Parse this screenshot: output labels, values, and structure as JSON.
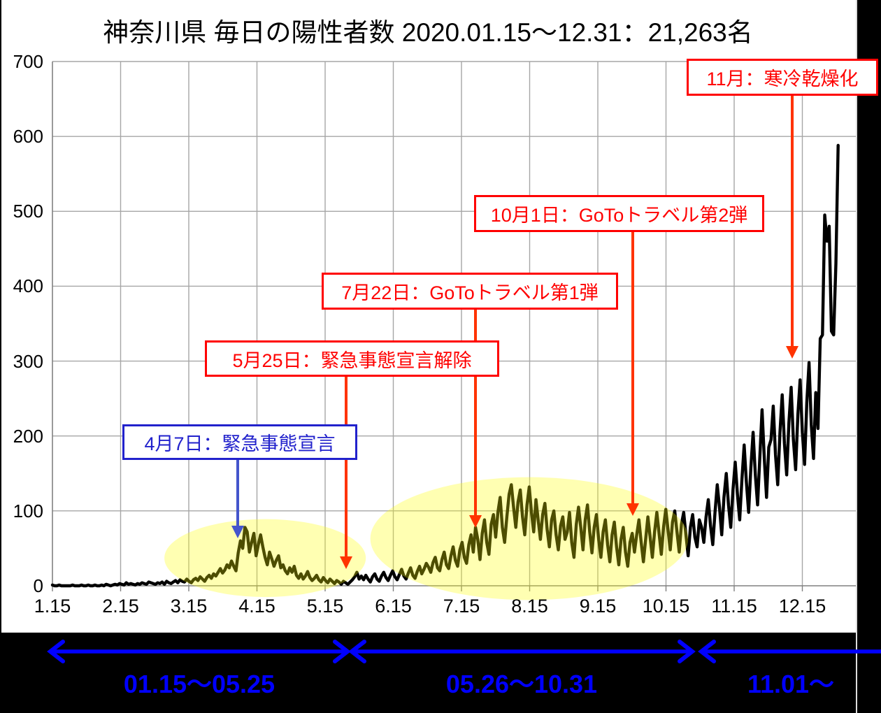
{
  "title": "神奈川県 毎日の陽性者数 2020.01.15〜12.31：21,263名",
  "chart_data": {
    "type": "line",
    "title": "神奈川県 毎日の陽性者数 2020.01.15〜12.31：21,263名",
    "total_cases_label": "21,263名",
    "x_range": "2020.01.15〜12.31",
    "x_ticks": [
      "1.15",
      "2.15",
      "3.15",
      "4.15",
      "5.15",
      "6.15",
      "7.15",
      "8.15",
      "9.15",
      "10.15",
      "11.15",
      "12.15"
    ],
    "y_ticks": [
      "0",
      "100",
      "200",
      "300",
      "400",
      "500",
      "600",
      "700"
    ],
    "ylim": [
      0,
      700
    ],
    "grid": true,
    "legend": "none",
    "series": [
      {
        "name": "毎日の陽性者数",
        "start_date": "1.15",
        "values": [
          1,
          0,
          0,
          1,
          0,
          0,
          0,
          0,
          0,
          1,
          0,
          0,
          0,
          1,
          0,
          0,
          1,
          0,
          0,
          1,
          0,
          0,
          1,
          0,
          2,
          1,
          0,
          1,
          2,
          1,
          3,
          2,
          1,
          4,
          2,
          3,
          2,
          1,
          3,
          2,
          4,
          3,
          2,
          5,
          4,
          3,
          2,
          4,
          3,
          5,
          2,
          6,
          4,
          3,
          5,
          7,
          4,
          8,
          6,
          5,
          9,
          6,
          4,
          8,
          10,
          7,
          12,
          9,
          6,
          11,
          14,
          10,
          16,
          13,
          18,
          23,
          17,
          21,
          28,
          24,
          33,
          26,
          20,
          44,
          60,
          50,
          78,
          72,
          45,
          58,
          70,
          40,
          55,
          68,
          52,
          38,
          28,
          45,
          36,
          26,
          34,
          40,
          24,
          28,
          20,
          16,
          24,
          18,
          26,
          14,
          10,
          16,
          9,
          13,
          19,
          11,
          7,
          10,
          14,
          8,
          5,
          11,
          7,
          4,
          9,
          6,
          3,
          7,
          5,
          2,
          6,
          4,
          2,
          5,
          8,
          12,
          18,
          9,
          13,
          8,
          14,
          9,
          5,
          12,
          16,
          9,
          6,
          13,
          18,
          11,
          7,
          14,
          20,
          12,
          8,
          15,
          22,
          13,
          9,
          17,
          24,
          14,
          10,
          19,
          26,
          16,
          22,
          30,
          25,
          18,
          31,
          38,
          24,
          20,
          35,
          45,
          28,
          23,
          40,
          52,
          34,
          26,
          48,
          58,
          38,
          30,
          55,
          68,
          45,
          78,
          62,
          35,
          70,
          88,
          58,
          42,
          82,
          95,
          65,
          98,
          118,
          78,
          58,
          92,
          122,
          135,
          105,
          78,
          112,
          128,
          92,
          68,
          108,
          132,
          98,
          72,
          115,
          88,
          62,
          95,
          110,
          75,
          52,
          88,
          100,
          68,
          48,
          80,
          92,
          62,
          72,
          98,
          58,
          38,
          82,
          105,
          78,
          48,
          88,
          108,
          72,
          44,
          78,
          95,
          62,
          38,
          72,
          88,
          55,
          32,
          68,
          85,
          52,
          28,
          62,
          78,
          45,
          26,
          58,
          70,
          45,
          68,
          88,
          58,
          32,
          62,
          92,
          65,
          38,
          72,
          98,
          70,
          42,
          78,
          102,
          75,
          48,
          85,
          100,
          72,
          45,
          82,
          98,
          68,
          40,
          78,
          95,
          65,
          52,
          88,
          78,
          58,
          92,
          115,
          80,
          55,
          98,
          135,
          105,
          68,
          118,
          150,
          108,
          78,
          128,
          165,
          122,
          88,
          142,
          188,
          138,
          98,
          158,
          205,
          148,
          108,
          172,
          235,
          170,
          118,
          185,
          195,
          240,
          175,
          135,
          205,
          255,
          190,
          148,
          218,
          265,
          195,
          155,
          228,
          275,
          205,
          162,
          245,
          298,
          215,
          170,
          258,
          210,
          330,
          335,
          495,
          460,
          480,
          340,
          335,
          430,
          588
        ]
      }
    ],
    "highlight_regions": [
      {
        "name": "first-wave-highlight",
        "cx_day": 95,
        "cy_value": 37,
        "rx_days": 45,
        "ry_value": 52,
        "fill": "#FFFF00",
        "opacity": 0.3
      },
      {
        "name": "second-wave-highlight",
        "cx_day": 213,
        "cy_value": 63,
        "rx_days": 71,
        "ry_value": 82,
        "fill": "#FFFF00",
        "opacity": 0.3
      }
    ]
  },
  "annotations": [
    {
      "label": "4月7日：緊急事態宣言",
      "color": "#2222CC",
      "arrow_color": "#4455CC"
    },
    {
      "label": "5月25日：緊急事態宣言解除",
      "color": "#FF0000",
      "arrow_color": "#FF3300"
    },
    {
      "label": "7月22日：GoToトラベル第1弾",
      "color": "#FF0000",
      "arrow_color": "#FF3300"
    },
    {
      "label": "10月1日：GoToトラベル第2弾",
      "color": "#FF0000",
      "arrow_color": "#FF3300"
    },
    {
      "label": "11月：寒冷乾燥化",
      "color": "#FF0000",
      "arrow_color": "#FF3300"
    }
  ],
  "periods": [
    {
      "label": "01.15〜05.25"
    },
    {
      "label": "05.26〜10.31"
    },
    {
      "label": "11.01〜"
    }
  ],
  "colors": {
    "line": "#000000",
    "grid": "#A6A6A6",
    "axis": "#808080",
    "highlight": "#FFFF00",
    "period_arrow": "#0000FF",
    "annotation_red": "#FF0000",
    "annotation_blue": "#2222CC"
  }
}
